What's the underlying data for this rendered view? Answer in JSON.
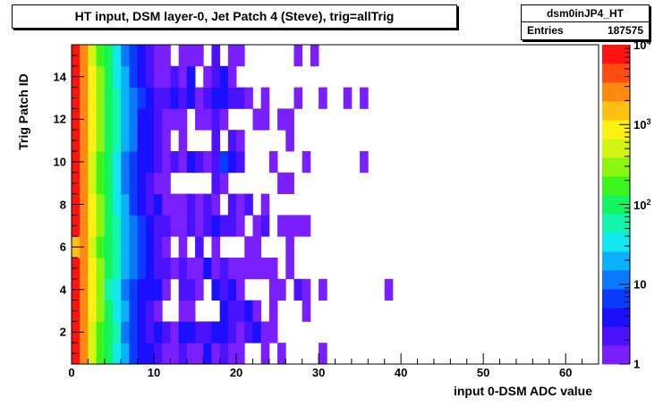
{
  "title": "HT input, DSM layer-0, Jet Patch 4 (Steve), trig=allTrig",
  "stats": {
    "name": "dsm0inJP4_HT",
    "entries_label": "Entries",
    "entries_value": "187575"
  },
  "colors": {
    "palette": [
      "#7a1fff",
      "#4b12ff",
      "#1a0fff",
      "#0a3bff",
      "#0a78ff",
      "#0bb0ff",
      "#11e8ee",
      "#11f5b0",
      "#12f560",
      "#3bf51c",
      "#8df512",
      "#d4f512",
      "#fff212",
      "#ffc012",
      "#ff8a12",
      "#ff4d12",
      "#ff1212"
    ],
    "frame": "#000000"
  },
  "chart_data": {
    "type": "heatmap",
    "title": "HT input, DSM layer-0, Jet Patch 4 (Steve), trig=allTrig",
    "xlabel": "input 0-DSM ADC value",
    "ylabel": "Trig Patch  ID",
    "xlim": [
      0,
      64
    ],
    "ylim": [
      0.5,
      15.5
    ],
    "x_ticks": [
      0,
      10,
      20,
      30,
      40,
      50,
      60
    ],
    "y_ticks": [
      2,
      4,
      6,
      8,
      10,
      12,
      14
    ],
    "z_scale": "log",
    "z_range": [
      1,
      10000
    ],
    "z_ticks": [
      {
        "value": 1,
        "label": "1"
      },
      {
        "value": 10,
        "label": "10"
      },
      {
        "value": 100,
        "label": "10",
        "exp": "2"
      },
      {
        "value": 1000,
        "label": "10",
        "exp": "3"
      },
      {
        "value": 10000,
        "label": "10",
        "exp": "4"
      }
    ],
    "bin_width_x": 1,
    "bin_height_y": 1,
    "rows": [
      {
        "y": 1,
        "counts": [
          9000,
          3000,
          600,
          200,
          80,
          40,
          20,
          8,
          5,
          3,
          2,
          1,
          1,
          2,
          1,
          1,
          3,
          1,
          2,
          1,
          1,
          0,
          0,
          1,
          0,
          1,
          0,
          0,
          0,
          0,
          1
        ]
      },
      {
        "y": 2,
        "counts": [
          9000,
          2800,
          650,
          220,
          90,
          45,
          15,
          7,
          4,
          2,
          3,
          2,
          1,
          3,
          3,
          2,
          2,
          4,
          3,
          2,
          1,
          2,
          3,
          1,
          1
        ]
      },
      {
        "y": 3,
        "counts": [
          8500,
          2600,
          700,
          250,
          100,
          40,
          18,
          6,
          3,
          2,
          1,
          0,
          0,
          1,
          1,
          0,
          0,
          0,
          3,
          2,
          2,
          3,
          1,
          0,
          1,
          0,
          0,
          0,
          1
        ]
      },
      {
        "y": 4,
        "counts": [
          8800,
          2500,
          750,
          230,
          70,
          35,
          14,
          8,
          5,
          3,
          3,
          1,
          0,
          2,
          2,
          1,
          0,
          4,
          2,
          3,
          1,
          0,
          0,
          0,
          1,
          1,
          0,
          2,
          1,
          0,
          1,
          0,
          0,
          0,
          0,
          0,
          0,
          0,
          1
        ]
      },
      {
        "y": 5,
        "counts": [
          9200,
          2900,
          800,
          260,
          110,
          50,
          22,
          10,
          6,
          4,
          2,
          2,
          1,
          2,
          1,
          1,
          3,
          1,
          2,
          1,
          1,
          1,
          1,
          1,
          1,
          0,
          1
        ]
      },
      {
        "y": 6,
        "counts": [
          1300,
          3000,
          650,
          210,
          100,
          60,
          25,
          12,
          7,
          3,
          2,
          1,
          0,
          1,
          0,
          2,
          0,
          1,
          0,
          0,
          0,
          1,
          1,
          0,
          0,
          0,
          1
        ]
      },
      {
        "y": 7,
        "counts": [
          9500,
          3100,
          900,
          280,
          120,
          55,
          24,
          11,
          6,
          3,
          2,
          2,
          1,
          1,
          2,
          1,
          2,
          3,
          2,
          2,
          1,
          0,
          1,
          2,
          0,
          1,
          1,
          1,
          1
        ]
      },
      {
        "y": 8,
        "counts": [
          8700,
          2700,
          700,
          240,
          95,
          42,
          16,
          8,
          4,
          2,
          3,
          1,
          1,
          1,
          2,
          1,
          2,
          1,
          0,
          2,
          1,
          2,
          0,
          1
        ]
      },
      {
        "y": 9,
        "counts": [
          9100,
          2800,
          650,
          200,
          80,
          30,
          12,
          6,
          3,
          2,
          1,
          1,
          0,
          0,
          0,
          0,
          0,
          2,
          1,
          0,
          0,
          0,
          0,
          0,
          0,
          1,
          1
        ]
      },
      {
        "y": 10,
        "counts": [
          8600,
          2600,
          620,
          190,
          85,
          38,
          14,
          7,
          5,
          3,
          2,
          1,
          2,
          1,
          3,
          2,
          1,
          2,
          6,
          3,
          2,
          0,
          0,
          0,
          1,
          0,
          0,
          0,
          1,
          0,
          0,
          0,
          0,
          0,
          0,
          1
        ]
      },
      {
        "y": 11,
        "counts": [
          8900,
          2750,
          680,
          230,
          100,
          45,
          20,
          9,
          4,
          3,
          2,
          1,
          0,
          1,
          0,
          0,
          0,
          2,
          0,
          2,
          1,
          0,
          0,
          0,
          0,
          0,
          1
        ]
      },
      {
        "y": 12,
        "counts": [
          9300,
          2950,
          780,
          270,
          115,
          52,
          20,
          10,
          5,
          3,
          2,
          1,
          1,
          1,
          0,
          1,
          1,
          2,
          1,
          0,
          0,
          0,
          1,
          1,
          0,
          1,
          1
        ]
      },
      {
        "y": 13,
        "counts": [
          9000,
          2850,
          720,
          250,
          105,
          48,
          19,
          9,
          6,
          3,
          2,
          2,
          3,
          2,
          3,
          1,
          2,
          3,
          3,
          2,
          2,
          1,
          0,
          1,
          0,
          0,
          0,
          1,
          0,
          0,
          1,
          0,
          0,
          1,
          0,
          1
        ]
      },
      {
        "y": 14,
        "counts": [
          8800,
          2700,
          690,
          240,
          95,
          44,
          17,
          8,
          5,
          2,
          1,
          1,
          2,
          1,
          3,
          0,
          1,
          2,
          3,
          1,
          0
        ]
      },
      {
        "y": 15,
        "counts": [
          8600,
          2650,
          660,
          220,
          90,
          40,
          15,
          7,
          4,
          2,
          1,
          1,
          0,
          1,
          1,
          1,
          0,
          2,
          0,
          1,
          1,
          0,
          0,
          0,
          0,
          0,
          0,
          1,
          0,
          1
        ]
      }
    ]
  }
}
